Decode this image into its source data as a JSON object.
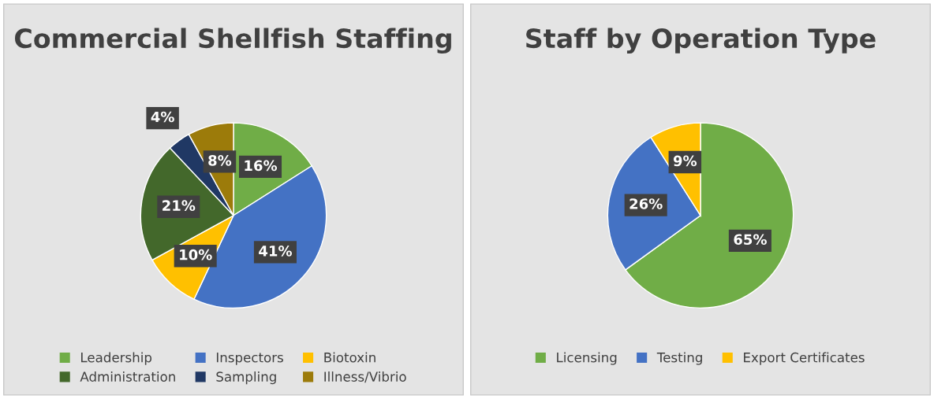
{
  "chart_data": [
    {
      "type": "pie",
      "title": "Commercial Shellfish Staffing",
      "categories": [
        "Leadership",
        "Inspectors",
        "Biotoxin",
        "Administration",
        "Sampling",
        "Illness/Vibrio"
      ],
      "values": [
        16,
        41,
        10,
        21,
        4,
        8
      ],
      "value_labels": [
        "16%",
        "41%",
        "10%",
        "21%",
        "4%",
        "8%"
      ],
      "colors": [
        "#70ad47",
        "#4472c4",
        "#ffc000",
        "#43682b",
        "#203864",
        "#9c7b0a"
      ],
      "legend": "bottom"
    },
    {
      "type": "pie",
      "title": "Staff by Operation Type",
      "categories": [
        "Licensing",
        "Testing",
        "Export Certificates"
      ],
      "values": [
        65,
        26,
        9
      ],
      "value_labels": [
        "65%",
        "26%",
        "9%"
      ],
      "colors": [
        "#70ad47",
        "#4472c4",
        "#ffc000"
      ],
      "legend": "bottom"
    }
  ]
}
